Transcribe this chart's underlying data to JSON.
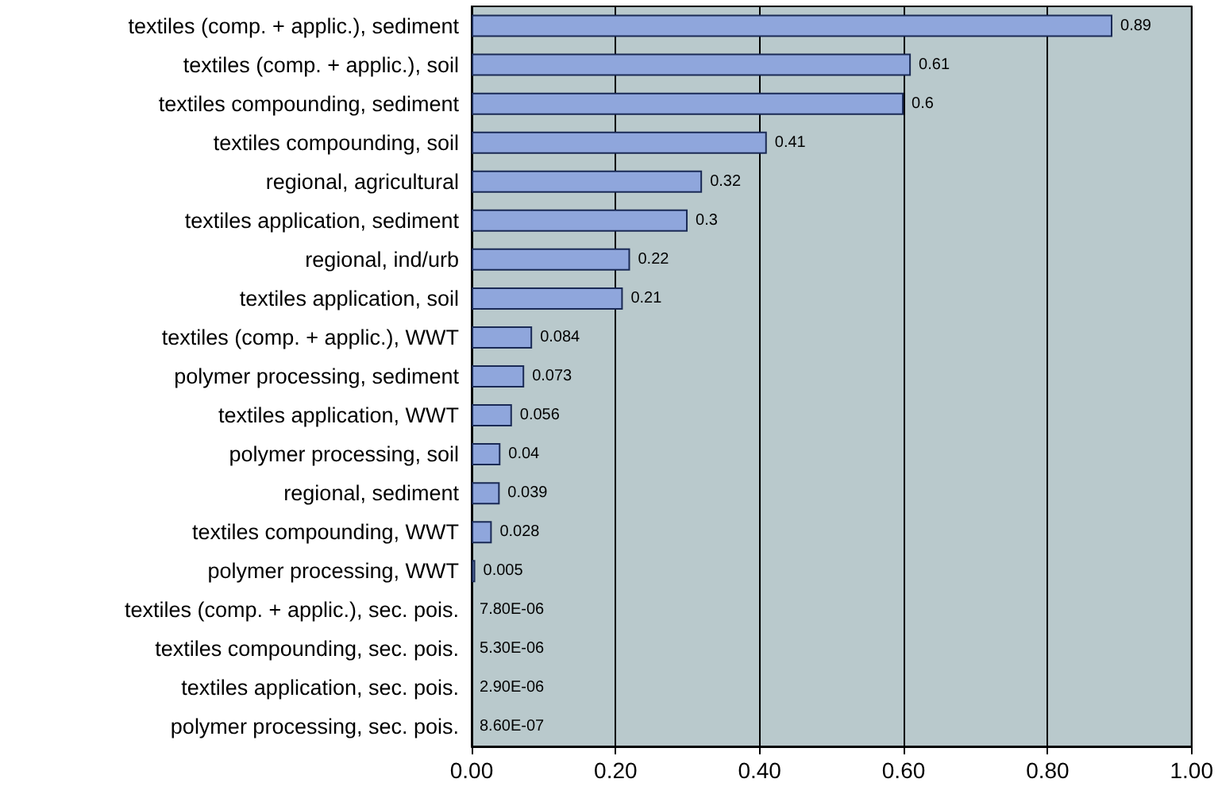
{
  "chart_data": {
    "type": "bar",
    "orientation": "horizontal",
    "categories": [
      "textiles (comp. + applic.), sediment",
      "textiles (comp. + applic.), soil",
      "textiles compounding, sediment",
      "textiles compounding, soil",
      "regional, agricultural",
      "textiles application, sediment",
      "regional, ind/urb",
      "textiles application, soil",
      "textiles (comp. + applic.), WWT",
      "polymer processing, sediment",
      "textiles application, WWT",
      "polymer processing, soil",
      "regional, sediment",
      "textiles compounding, WWT",
      "polymer processing, WWT",
      "textiles (comp. + applic.), sec. pois.",
      "textiles compounding, sec. pois.",
      "textiles application, sec. pois.",
      "polymer processing, sec. pois."
    ],
    "values": [
      0.89,
      0.61,
      0.6,
      0.41,
      0.32,
      0.3,
      0.22,
      0.21,
      0.084,
      0.073,
      0.056,
      0.04,
      0.039,
      0.028,
      0.005,
      7.8e-06,
      5.3e-06,
      2.9e-06,
      8.6e-07
    ],
    "value_labels": [
      "0.89",
      "0.61",
      "0.6",
      "0.41",
      "0.32",
      "0.3",
      "0.22",
      "0.21",
      "0.084",
      "0.073",
      "0.056",
      "0.04",
      "0.039",
      "0.028",
      "0.005",
      "7.80E-06",
      "5.30E-06",
      "2.90E-06",
      "8.60E-07"
    ],
    "color": "#8fa6dc",
    "xlim": [
      0,
      1
    ],
    "xticks": [
      {
        "value": 0,
        "label": "0.00"
      },
      {
        "value": 0.2,
        "label": "0.20"
      },
      {
        "value": 0.4,
        "label": "0.40"
      },
      {
        "value": 0.6,
        "label": "0.60"
      },
      {
        "value": 0.8,
        "label": "0.80"
      },
      {
        "value": 1,
        "label": "1.00"
      }
    ],
    "grid": "x"
  }
}
